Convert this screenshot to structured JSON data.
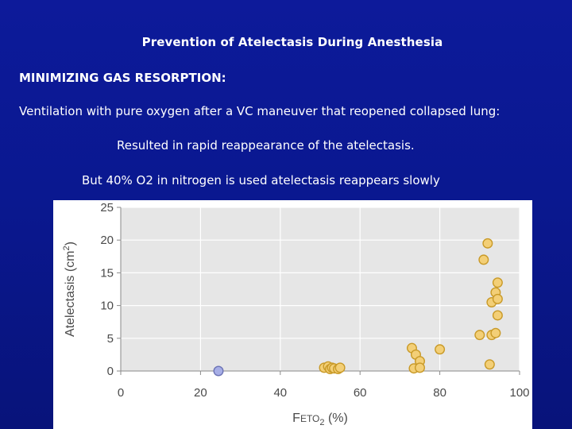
{
  "slide": {
    "title": "Prevention of Atelectasis During Anesthesia",
    "heading": "MINIMIZING GAS RESORPTION:",
    "line1": "Ventilation with pure oxygen after a VC maneuver that  reopened collapsed lung:",
    "line2": "Resulted in rapid reappearance of the atelectasis.",
    "line3": "But 40% O2 in nitrogen is used atelectasis reappears slowly"
  },
  "colors": {
    "background": "#0a1890",
    "point_fill": "#f3cf77",
    "point_stroke": "#c99a28",
    "highlight_fill": "#a7aee6",
    "highlight_stroke": "#6c73b5"
  },
  "chart_data": {
    "type": "scatter",
    "title": "",
    "xlabel": "FETO2 (%)",
    "ylabel": "Atelectasis (cm2)",
    "xlim": [
      0,
      100
    ],
    "ylim": [
      0,
      25
    ],
    "xticks": [
      0,
      20,
      40,
      60,
      80,
      100
    ],
    "yticks": [
      0,
      5,
      10,
      15,
      20,
      25
    ],
    "grid": true,
    "legend": "none",
    "series": [
      {
        "style": "gold",
        "points": [
          [
            51,
            0.5
          ],
          [
            52,
            0.7
          ],
          [
            52.5,
            0.3
          ],
          [
            53,
            0.5
          ],
          [
            53.5,
            0.4
          ],
          [
            54.5,
            0.3
          ],
          [
            55,
            0.5
          ],
          [
            73,
            3.5
          ],
          [
            73.5,
            0.4
          ],
          [
            74,
            2.5
          ],
          [
            75,
            1.5
          ],
          [
            75,
            0.5
          ],
          [
            80,
            3.3
          ],
          [
            90,
            5.5
          ],
          [
            91,
            17
          ],
          [
            92,
            19.5
          ],
          [
            92.5,
            1.0
          ],
          [
            93,
            5.5
          ],
          [
            93,
            10.5
          ],
          [
            94,
            12
          ],
          [
            94,
            5.8
          ],
          [
            94.5,
            8.5
          ],
          [
            94.5,
            11
          ],
          [
            94.5,
            13.5
          ]
        ]
      },
      {
        "style": "blue",
        "points": [
          [
            24.5,
            0.0
          ]
        ]
      }
    ]
  }
}
